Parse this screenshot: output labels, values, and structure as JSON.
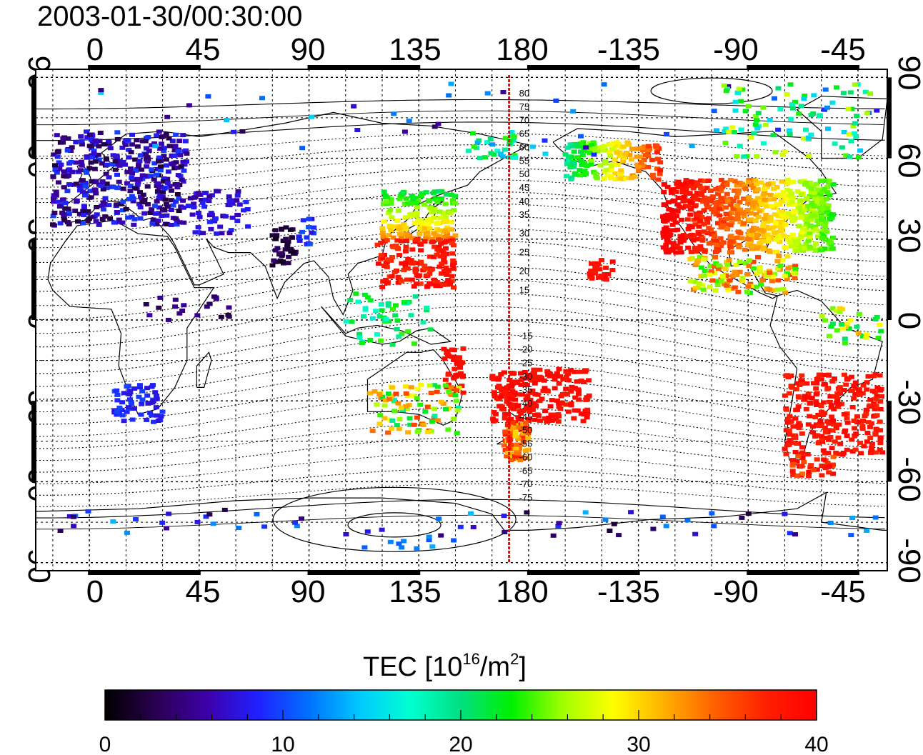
{
  "title": "2003-01-30/00:30:00",
  "longitude_labels": [
    "0",
    "45",
    "90",
    "135",
    "180",
    "-135",
    "-90",
    "-45"
  ],
  "latitude_labels": [
    "90",
    "60",
    "30",
    "0",
    "-30",
    "-60",
    "-90"
  ],
  "map": {
    "lon_min": -22,
    "lon_max": 327,
    "lat_min": -93,
    "lat_max": 93,
    "terminator_lon": 172,
    "magnetic_lat_labels_north": [
      "80",
      "75",
      "70",
      "65",
      "60",
      "55",
      "50",
      "45",
      "40",
      "35",
      "30",
      "25",
      "20",
      "15"
    ],
    "magnetic_lat_labels_south": [
      "-15",
      "-20",
      "-25",
      "-30",
      "-35",
      "-40",
      "-45",
      "-50",
      "-55",
      "-60",
      "-65",
      "-70",
      "-75"
    ]
  },
  "colorbar": {
    "title_main": "TEC  [10",
    "title_exp1": "16",
    "title_mid": "/m",
    "title_exp2": "2",
    "title_end": "]",
    "min": 0,
    "max": 40,
    "ticks": [
      "0",
      "10",
      "20",
      "30",
      "40"
    ],
    "colors": [
      "#000000",
      "#2a0050",
      "#3d00a8",
      "#2020ff",
      "#0070ff",
      "#00c8ff",
      "#00ffd0",
      "#00e080",
      "#00f000",
      "#a0ff00",
      "#ffff00",
      "#ffb000",
      "#ff6000",
      "#ff2000",
      "#ff0000"
    ]
  }
}
